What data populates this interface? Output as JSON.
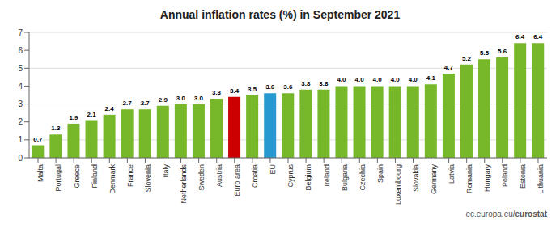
{
  "chart_data": {
    "type": "bar",
    "title": "Annual inflation rates (%) in September 2021",
    "categories": [
      "Malta",
      "Portugal",
      "Greece",
      "Finland",
      "Denmark",
      "France",
      "Slovenia",
      "Italy",
      "Netherlands",
      "Sweden",
      "Austria",
      "Euro area",
      "Croatia",
      "EU",
      "Cyprus",
      "Belgium",
      "Ireland",
      "Bulgaria",
      "Czechia",
      "Spain",
      "Luxembourg",
      "Slovakia",
      "Germany",
      "Latvia",
      "Romania",
      "Hungary",
      "Poland",
      "Estonia",
      "Lithuania"
    ],
    "values": [
      0.7,
      1.3,
      1.9,
      2.1,
      2.4,
      2.7,
      2.7,
      2.9,
      3.0,
      3.0,
      3.3,
      3.4,
      3.5,
      3.6,
      3.6,
      3.8,
      3.8,
      4.0,
      4.0,
      4.0,
      4.0,
      4.0,
      4.1,
      4.7,
      5.2,
      5.5,
      5.6,
      6.4,
      6.4
    ],
    "value_labels": [
      "0.7",
      "1.3",
      "1.9",
      "2.1",
      "2.4",
      "2.7",
      "2.7",
      "2.9",
      "3.0",
      "3.0",
      "3.3",
      "3.4",
      "3.5",
      "3.6",
      "3.6",
      "3.8",
      "3.8",
      "4.0",
      "4.0",
      "4.0",
      "4.0",
      "4.0",
      "4.1",
      "4.7",
      "5.2",
      "5.5",
      "5.6",
      "6.4",
      "6.4"
    ],
    "data_labels": true,
    "colors": [
      "#76b82a",
      "#76b82a",
      "#76b82a",
      "#76b82a",
      "#76b82a",
      "#76b82a",
      "#76b82a",
      "#76b82a",
      "#76b82a",
      "#76b82a",
      "#76b82a",
      "#cc0000",
      "#76b82a",
      "#2699d0",
      "#76b82a",
      "#76b82a",
      "#76b82a",
      "#76b82a",
      "#76b82a",
      "#76b82a",
      "#76b82a",
      "#76b82a",
      "#76b82a",
      "#76b82a",
      "#76b82a",
      "#76b82a",
      "#76b82a",
      "#76b82a",
      "#76b82a"
    ],
    "ylim": [
      0,
      7
    ],
    "yticks": [
      0,
      1,
      2,
      3,
      4,
      5,
      6,
      7
    ],
    "grid": true,
    "annotations": [
      "ec.europa.eu/",
      "eurostat"
    ]
  }
}
